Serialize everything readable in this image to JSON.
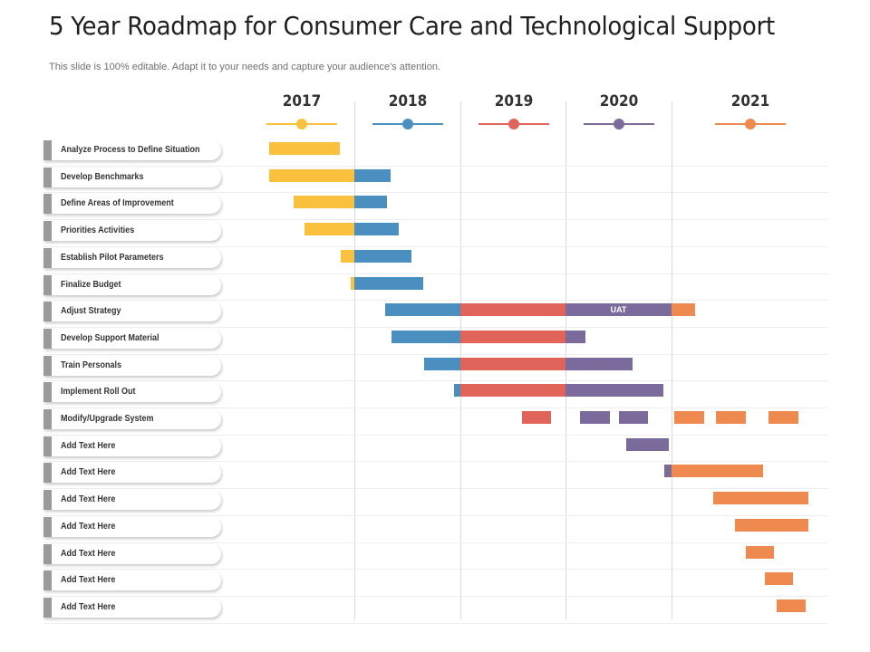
{
  "title": "5 Year Roadmap for Consumer Care and Technological Support",
  "subtitle": "This slide is 100% editable. Adapt it to your needs and capture your audience's attention.",
  "colors": {
    "2017": "#f9c13e",
    "2018": "#4a8fc0",
    "2019": "#e0645a",
    "2020": "#7b6b9c",
    "2021": "#ee8a50"
  },
  "years": [
    {
      "year": "2017",
      "color": "#f9c13e"
    },
    {
      "year": "2018",
      "color": "#4a8fc0"
    },
    {
      "year": "2019",
      "color": "#e0645a"
    },
    {
      "year": "2020",
      "color": "#7b6b9c"
    },
    {
      "year": "2021",
      "color": "#ee8a50"
    }
  ],
  "tasks": [
    "Analyze Process to Define Situation",
    "Develop Benchmarks",
    "Define Areas of Improvement",
    "Priorities Activities",
    "Establish Pilot Parameters",
    "Finalize Budget",
    "Adjust Strategy",
    "Develop Support Material",
    "Train Personals",
    "Implement Roll Out",
    "Modify/Upgrade System",
    "Add Text Here",
    "Add Text Here",
    "Add Text Here",
    "Add Text Here",
    "Add Text Here",
    "Add Text Here",
    "Add Text Here"
  ],
  "bar_annotations": [
    {
      "task": "Adjust Strategy",
      "year": "2020",
      "text": "UAT"
    }
  ]
}
